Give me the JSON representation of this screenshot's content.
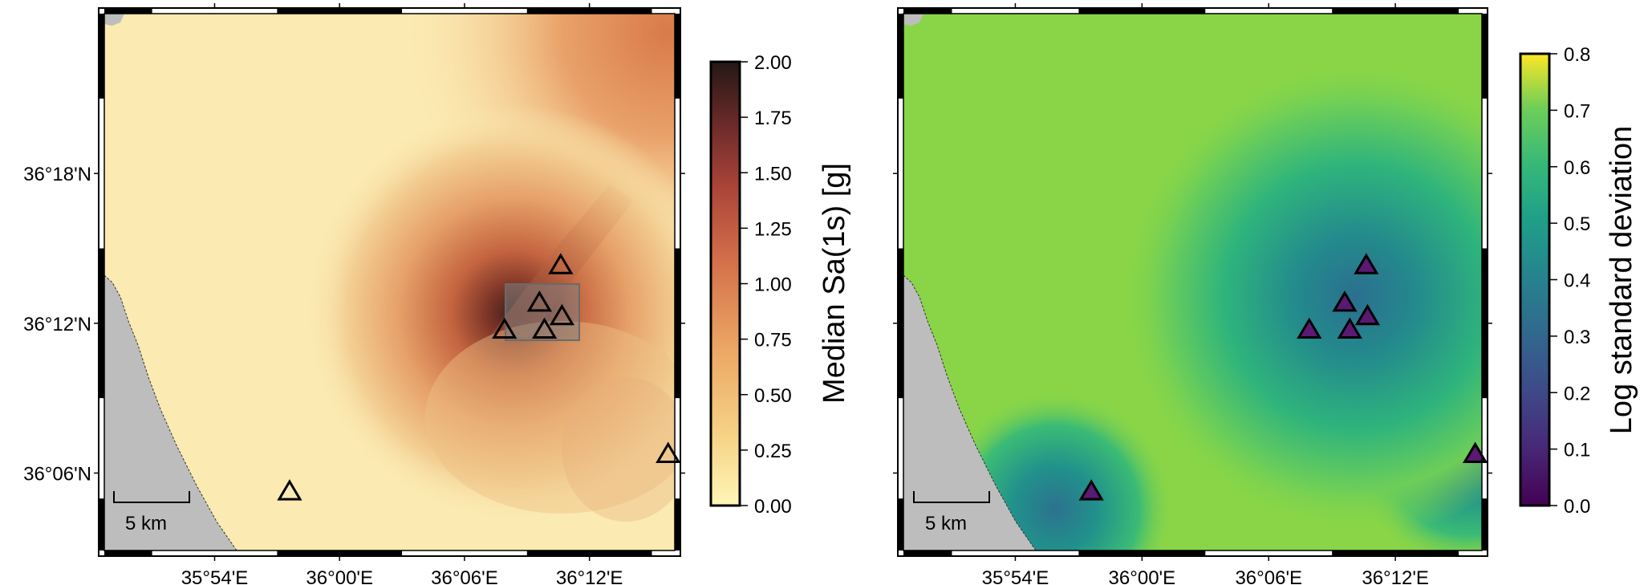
{
  "maps": [
    {
      "name": "median-map",
      "colorbar": {
        "title": "Median Sa(1s) [g]",
        "ticks": [
          "0.00",
          "0.25",
          "0.50",
          "0.75",
          "1.00",
          "1.25",
          "1.50",
          "1.75",
          "2.00"
        ],
        "range": [
          0,
          2.0
        ],
        "palette": "inferno-light"
      },
      "station_style": "hollow",
      "has_highlight_box": true
    },
    {
      "name": "std-map",
      "colorbar": {
        "title": "Log standard deviation",
        "ticks": [
          "0.0",
          "0.1",
          "0.2",
          "0.3",
          "0.4",
          "0.5",
          "0.6",
          "0.7",
          "0.8"
        ],
        "range": [
          0,
          0.8
        ],
        "palette": "viridis"
      },
      "station_style": "filled",
      "has_highlight_box": false
    }
  ],
  "axes": {
    "lon_ticks": [
      "35°54'E",
      "36°00'E",
      "36°06'E",
      "36°12'E"
    ],
    "lat_ticks": [
      "36°18'N",
      "36°12'N",
      "36°06'N"
    ]
  },
  "scale_bar": {
    "label": "5 km"
  },
  "stations": [
    {
      "lon": 36.177,
      "lat": 36.238
    },
    {
      "lon": 36.16,
      "lat": 36.213
    },
    {
      "lon": 36.178,
      "lat": 36.204
    },
    {
      "lon": 36.132,
      "lat": 36.195
    },
    {
      "lon": 36.164,
      "lat": 36.195
    },
    {
      "lon": 36.263,
      "lat": 36.112
    },
    {
      "lon": 35.96,
      "lat": 36.087
    }
  ],
  "colors": {
    "land_sea": "#bdbdbd",
    "frame": "#000000",
    "station_fill_std": "#5a1a72",
    "highlight_box": "#7f7f7f"
  }
}
